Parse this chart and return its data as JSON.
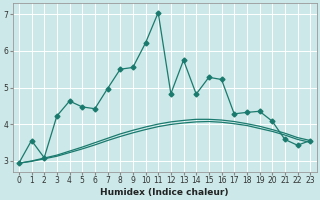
{
  "xlabel": "Humidex (Indice chaleur)",
  "bg_color": "#cce8e8",
  "grid_color": "#b0d8d8",
  "line_color": "#1a7a6e",
  "xlim": [
    -0.5,
    23.5
  ],
  "ylim": [
    2.7,
    7.3
  ],
  "x_ticks": [
    0,
    1,
    2,
    3,
    4,
    5,
    6,
    7,
    8,
    9,
    10,
    11,
    12,
    13,
    14,
    15,
    16,
    17,
    18,
    19,
    20,
    21,
    22,
    23
  ],
  "y_ticks": [
    3,
    4,
    5,
    6,
    7
  ],
  "line1_x": [
    0,
    1,
    2,
    3,
    4,
    5,
    6,
    7,
    8,
    9,
    10,
    11,
    12,
    13,
    14,
    15,
    16,
    17,
    18,
    19,
    20,
    21,
    22,
    23
  ],
  "line1_y": [
    2.93,
    3.55,
    3.08,
    4.22,
    4.63,
    4.47,
    4.42,
    4.97,
    5.5,
    5.55,
    6.22,
    7.05,
    4.83,
    5.75,
    4.82,
    5.28,
    5.22,
    4.28,
    4.32,
    4.35,
    4.08,
    3.58,
    3.42,
    3.55
  ],
  "line2_x": [
    0,
    1,
    2,
    3,
    4,
    5,
    6,
    7,
    8,
    9,
    10,
    11,
    12,
    13,
    14,
    15,
    16,
    17,
    18,
    19,
    20,
    21,
    22,
    23
  ],
  "line2_y": [
    2.93,
    2.98,
    3.05,
    3.12,
    3.22,
    3.32,
    3.43,
    3.55,
    3.66,
    3.76,
    3.85,
    3.93,
    3.99,
    4.03,
    4.06,
    4.07,
    4.05,
    4.01,
    3.96,
    3.88,
    3.8,
    3.7,
    3.58,
    3.5
  ],
  "line3_x": [
    0,
    1,
    2,
    3,
    4,
    5,
    6,
    7,
    8,
    9,
    10,
    11,
    12,
    13,
    14,
    15,
    16,
    17,
    18,
    19,
    20,
    21,
    22,
    23
  ],
  "line3_y": [
    2.93,
    2.99,
    3.07,
    3.15,
    3.26,
    3.37,
    3.49,
    3.61,
    3.73,
    3.83,
    3.92,
    4.0,
    4.06,
    4.1,
    4.13,
    4.13,
    4.11,
    4.07,
    4.01,
    3.94,
    3.85,
    3.75,
    3.63,
    3.55
  ],
  "marker_size": 2.5,
  "line_width": 0.9,
  "xlabel_fontsize": 6.5,
  "tick_fontsize": 5.5
}
